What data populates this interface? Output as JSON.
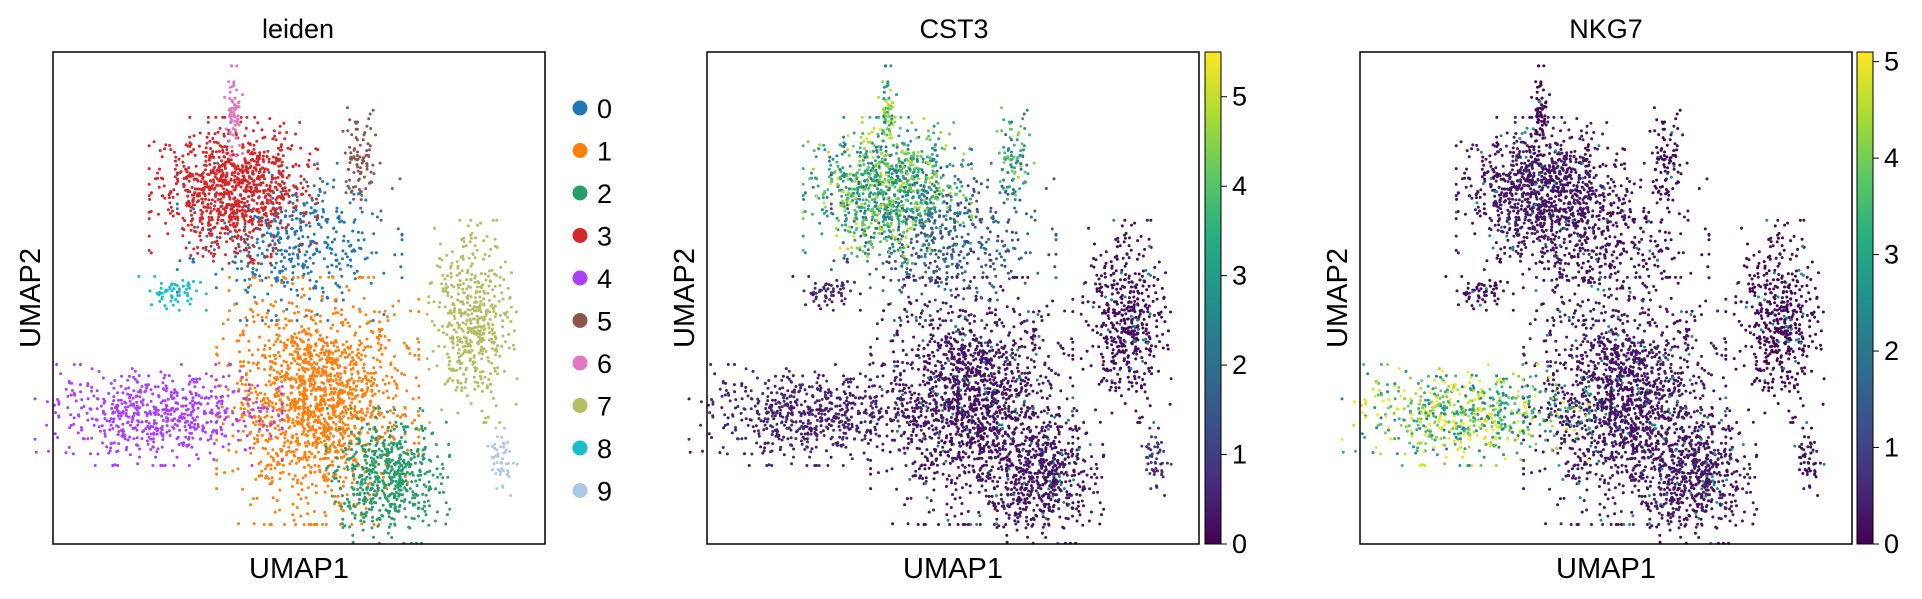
{
  "chart_data": [
    {
      "type": "scatter",
      "title": "leiden",
      "xlabel": "UMAP1",
      "ylabel": "UMAP2",
      "color_by": "categorical",
      "legend_placement": "right",
      "legend": [
        {
          "label": "0",
          "color": "#1f77b4"
        },
        {
          "label": "1",
          "color": "#ff7f0e"
        },
        {
          "label": "2",
          "color": "#279e68"
        },
        {
          "label": "3",
          "color": "#d62728"
        },
        {
          "label": "4",
          "color": "#aa40fc"
        },
        {
          "label": "5",
          "color": "#8c564b"
        },
        {
          "label": "6",
          "color": "#e377c2"
        },
        {
          "label": "7",
          "color": "#b5bd61"
        },
        {
          "label": "8",
          "color": "#17becf"
        },
        {
          "label": "9",
          "color": "#aec7e8"
        }
      ],
      "clusters": [
        {
          "label": "0",
          "color": "#1f77b4",
          "x": 4.8,
          "y": 6.2,
          "sx": 1.0,
          "sy": 0.7,
          "n": 420
        },
        {
          "label": "1",
          "color": "#ff7f0e",
          "x": 5.4,
          "y": 2.8,
          "sx": 0.9,
          "sy": 1.1,
          "n": 1500
        },
        {
          "label": "2",
          "color": "#279e68",
          "x": 6.9,
          "y": 1.2,
          "sx": 0.55,
          "sy": 0.6,
          "n": 550
        },
        {
          "label": "3",
          "color": "#d62728",
          "x": 3.6,
          "y": 7.3,
          "sx": 0.75,
          "sy": 0.65,
          "n": 950
        },
        {
          "label": "4",
          "color": "#aa40fc",
          "x": 2.0,
          "y": 2.5,
          "sx": 1.1,
          "sy": 0.45,
          "n": 620
        },
        {
          "label": "5",
          "color": "#8c564b",
          "x": 6.3,
          "y": 8.0,
          "sx": 0.18,
          "sy": 0.45,
          "n": 90
        },
        {
          "label": "6",
          "color": "#e377c2",
          "x": 3.6,
          "y": 9.0,
          "sx": 0.08,
          "sy": 0.4,
          "n": 70
        },
        {
          "label": "7",
          "color": "#b5bd61",
          "x": 8.7,
          "y": 4.5,
          "sx": 0.4,
          "sy": 0.9,
          "n": 480
        },
        {
          "label": "8",
          "color": "#17becf",
          "x": 2.3,
          "y": 5.1,
          "sx": 0.3,
          "sy": 0.15,
          "n": 60
        },
        {
          "label": "9",
          "color": "#aec7e8",
          "x": 9.3,
          "y": 1.5,
          "sx": 0.15,
          "sy": 0.3,
          "n": 50
        }
      ],
      "xlim": [
        0,
        10
      ],
      "ylim": [
        0,
        10
      ],
      "ticks_shown": false
    },
    {
      "type": "scatter",
      "title": "CST3",
      "xlabel": "UMAP1",
      "ylabel": "UMAP2",
      "color_by": "continuous",
      "colormap": "viridis",
      "colorbar_range": [
        0,
        5.5
      ],
      "colorbar_ticks": [
        "0",
        "1",
        "2",
        "3",
        "4",
        "5"
      ],
      "expression_by_cluster": {
        "0": 1.6,
        "1": 0.3,
        "2": 0.3,
        "3": 3.6,
        "4": 0.5,
        "5": 3.3,
        "6": 3.8,
        "7": 0.2,
        "8": 0.6,
        "9": 0.8
      }
    },
    {
      "type": "scatter",
      "title": "NKG7",
      "xlabel": "UMAP1",
      "ylabel": "UMAP2",
      "color_by": "continuous",
      "colormap": "viridis",
      "colorbar_range": [
        0,
        5.1
      ],
      "colorbar_ticks": [
        "0",
        "1",
        "2",
        "3",
        "4",
        "5"
      ],
      "expression_by_cluster": {
        "0": 0.2,
        "1": 0.3,
        "2": 0.3,
        "3": 0.3,
        "4": 3.8,
        "5": 0.1,
        "6": 0.1,
        "7": 0.1,
        "8": 0.2,
        "9": 0.2
      }
    }
  ]
}
